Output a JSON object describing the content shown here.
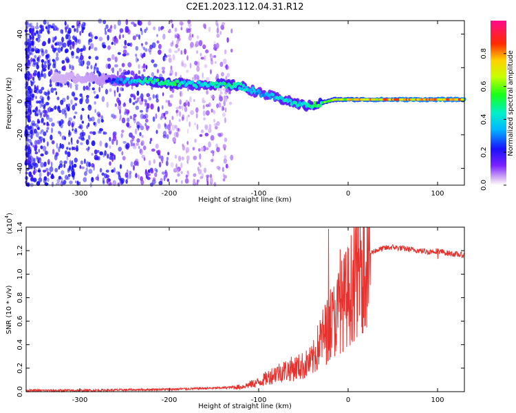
{
  "figure_title": "C2E1.2023.112.04.31.R12",
  "chart_data": [
    {
      "type": "heatmap",
      "title": "C2E1.2023.112.04.31.R12",
      "xlabel": "Height of straight line (km)",
      "ylabel": "Frequency (Hz)",
      "xlim": [
        -360,
        130
      ],
      "ylim": [
        -50,
        48
      ],
      "xticks": [
        -300,
        -200,
        -100,
        0,
        100
      ],
      "yticks": [
        -40,
        -20,
        0,
        20,
        40
      ],
      "colorbar": {
        "label": "Normalized spectral amplitude",
        "range": [
          0,
          1
        ],
        "ticks": [
          "0.0",
          "0.2",
          "0.4",
          "0.6",
          "0.8"
        ],
        "colormap": "rainbow (purple → blue → cyan → green → yellow → red → magenta)"
      },
      "ridge": [
        {
          "x": -330,
          "y": 14,
          "amp": 0.12
        },
        {
          "x": -300,
          "y": 14,
          "amp": 0.14
        },
        {
          "x": -270,
          "y": 13,
          "amp": 0.18
        },
        {
          "x": -250,
          "y": 12,
          "amp": 0.35
        },
        {
          "x": -220,
          "y": 12,
          "amp": 0.5
        },
        {
          "x": -200,
          "y": 11,
          "amp": 0.55
        },
        {
          "x": -180,
          "y": 10,
          "amp": 0.45
        },
        {
          "x": -160,
          "y": 10,
          "amp": 0.4
        },
        {
          "x": -140,
          "y": 10,
          "amp": 0.5
        },
        {
          "x": -120,
          "y": 9,
          "amp": 0.45
        },
        {
          "x": -100,
          "y": 5,
          "amp": 0.35
        },
        {
          "x": -80,
          "y": 2,
          "amp": 0.4
        },
        {
          "x": -60,
          "y": -1,
          "amp": 0.45
        },
        {
          "x": -45,
          "y": -3,
          "amp": 0.45
        },
        {
          "x": -30,
          "y": -1,
          "amp": 0.6
        },
        {
          "x": -15,
          "y": 1,
          "amp": 0.7
        },
        {
          "x": 0,
          "y": 1,
          "amp": 0.75
        },
        {
          "x": 30,
          "y": 1,
          "amp": 0.8
        },
        {
          "x": 60,
          "y": 1,
          "amp": 0.85
        },
        {
          "x": 100,
          "y": 1,
          "amp": 0.85
        },
        {
          "x": 130,
          "y": 1,
          "amp": 0.85
        }
      ]
    },
    {
      "type": "line",
      "xlabel": "Height of straight line (km)",
      "ylabel": "SNR (10 * v/v)",
      "y_scale_label": "(x10",
      "y_scale_exponent": "4",
      "y_scale_close": ")",
      "xlim": [
        -360,
        130
      ],
      "ylim": [
        0,
        1.4
      ],
      "xticks": [
        -300,
        -200,
        -100,
        0,
        100
      ],
      "yticks": [
        "0.0",
        "0.2",
        "0.4",
        "0.6",
        "0.8",
        "1.0",
        "1.2",
        "1.4"
      ],
      "color": "#e8302c",
      "series": [
        {
          "x": [
            -360,
            -300,
            -250,
            -200,
            -150,
            -120,
            -100,
            -90,
            -80,
            -70,
            -60,
            -50,
            -40,
            -30,
            -20,
            -10,
            0,
            10,
            20,
            30,
            40,
            50,
            60,
            70,
            80,
            90,
            100,
            110,
            120,
            130
          ],
          "y": [
            0.01,
            0.01,
            0.015,
            0.02,
            0.03,
            0.04,
            0.08,
            0.12,
            0.16,
            0.18,
            0.2,
            0.22,
            0.26,
            0.45,
            0.55,
            0.7,
            0.82,
            1.0,
            1.15,
            1.2,
            1.22,
            1.23,
            1.22,
            1.21,
            1.2,
            1.19,
            1.2,
            1.18,
            1.17,
            1.16
          ]
        }
      ]
    }
  ]
}
